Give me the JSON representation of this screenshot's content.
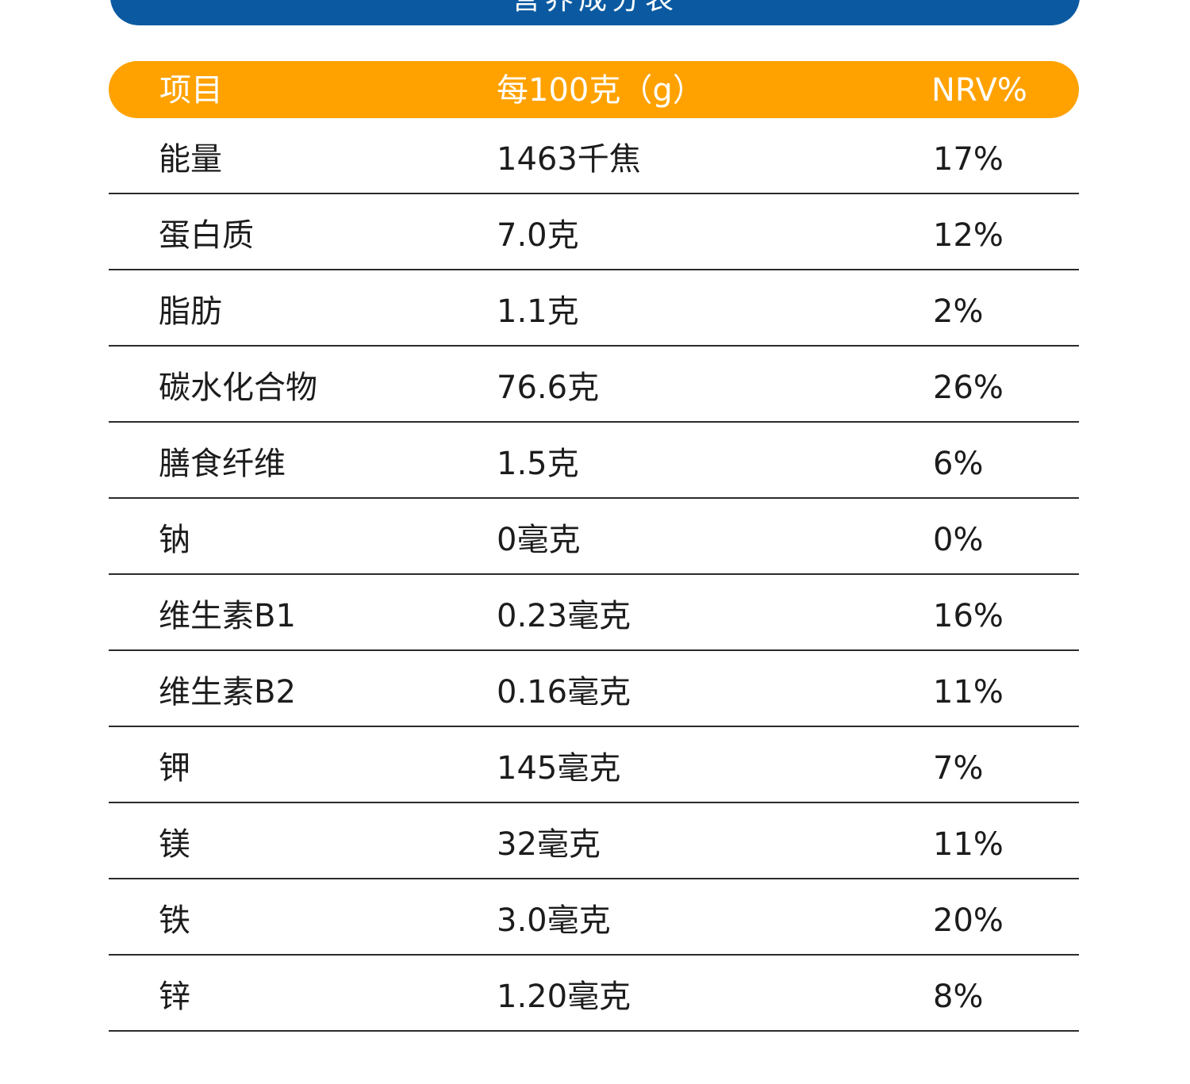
{
  "title": "营养成分表",
  "header": {
    "item": "项目",
    "amount": "每100克（g）",
    "nrv": "NRV%"
  },
  "rows": [
    {
      "item": "能量",
      "amount": "1463千焦",
      "nrv": "17%"
    },
    {
      "item": "蛋白质",
      "amount": "7.0克",
      "nrv": "12%"
    },
    {
      "item": "脂肪",
      "amount": "1.1克",
      "nrv": "2%"
    },
    {
      "item": "碳水化合物",
      "amount": "76.6克",
      "nrv": "26%"
    },
    {
      "item": "膳食纤维",
      "amount": "1.5克",
      "nrv": "6%"
    },
    {
      "item": "钠",
      "amount": "0毫克",
      "nrv": "0%"
    },
    {
      "item": "维生素B1",
      "amount": "0.23毫克",
      "nrv": "16%"
    },
    {
      "item": "维生素B2",
      "amount": "0.16毫克",
      "nrv": "11%"
    },
    {
      "item": "钾",
      "amount": "145毫克",
      "nrv": "7%"
    },
    {
      "item": "镁",
      "amount": "32毫克",
      "nrv": "11%"
    },
    {
      "item": "铁",
      "amount": "3.0毫克",
      "nrv": "20%"
    },
    {
      "item": "锌",
      "amount": "1.20毫克",
      "nrv": "8%"
    }
  ],
  "colors": {
    "banner": "#0b5aa1",
    "header": "#ffa200",
    "text": "#1c1c1c",
    "rule": "#2b2b2b"
  }
}
